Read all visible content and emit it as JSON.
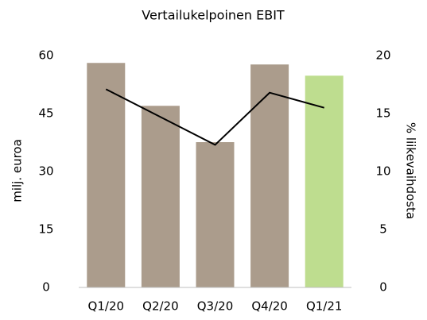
{
  "chart_data": {
    "type": "bar",
    "title": "Vertailukelpoinen EBIT",
    "y_label": "milj. euroa",
    "y2_label": "% liikevaihdosta",
    "categories": [
      "Q1/20",
      "Q2/20",
      "Q3/20",
      "Q4/20",
      "Q1/21"
    ],
    "series": [
      {
        "type": "bar",
        "colors": [
          "#ab9c8c",
          "#ab9c8c",
          "#ab9c8c",
          "#ab9c8c",
          "#bedd8f"
        ],
        "values": [
          58.1,
          47.0,
          37.6,
          57.7,
          54.8
        ]
      },
      {
        "type": "line",
        "axis": "y2",
        "color": "#000000",
        "values": [
          17.1,
          14.7,
          12.3,
          16.8,
          15.5
        ]
      }
    ],
    "ylim": [
      0,
      60
    ],
    "yticks": [
      0,
      15,
      30,
      45,
      60
    ],
    "y2lim": [
      0,
      20
    ],
    "y2ticks": [
      0,
      5,
      10,
      15,
      20
    ]
  }
}
